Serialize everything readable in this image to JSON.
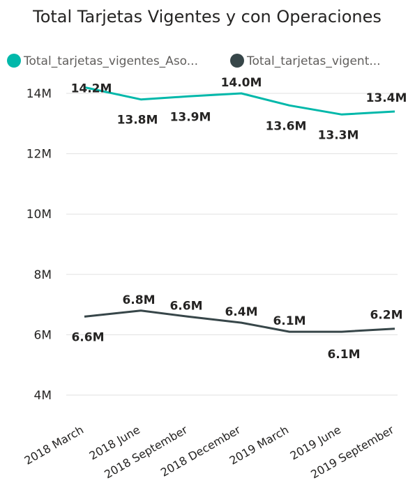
{
  "chart_data": {
    "type": "line",
    "title": "Total Tarjetas Vigentes y con Operaciones",
    "categories": [
      "2018 March",
      "2018 June",
      "2018 September",
      "2018 December",
      "2019 March",
      "2019 June",
      "2019 September"
    ],
    "series": [
      {
        "name": "Total_tarjetas_vigentes_Aso...",
        "color": "#01b8aa",
        "values": [
          14.2,
          13.8,
          13.9,
          14.0,
          13.6,
          13.3,
          13.4
        ],
        "labels": [
          "14.2M",
          "13.8M",
          "13.9M",
          "14.0M",
          "13.6M",
          "13.3M",
          "13.4M"
        ]
      },
      {
        "name": "Total_tarjetas_vigent...",
        "color": "#374649",
        "values": [
          6.6,
          6.8,
          6.6,
          6.4,
          6.1,
          6.1,
          6.2
        ],
        "labels": [
          "6.6M",
          "6.8M",
          "6.6M",
          "6.4M",
          "6.1M",
          "6.1M",
          "6.2M"
        ]
      }
    ],
    "y_ticks": [
      4,
      6,
      8,
      10,
      12,
      14
    ],
    "y_tick_labels": [
      "4M",
      "6M",
      "8M",
      "10M",
      "12M",
      "14M"
    ],
    "ylim": [
      4,
      14
    ],
    "grid": true,
    "legend_position": "top-left"
  }
}
